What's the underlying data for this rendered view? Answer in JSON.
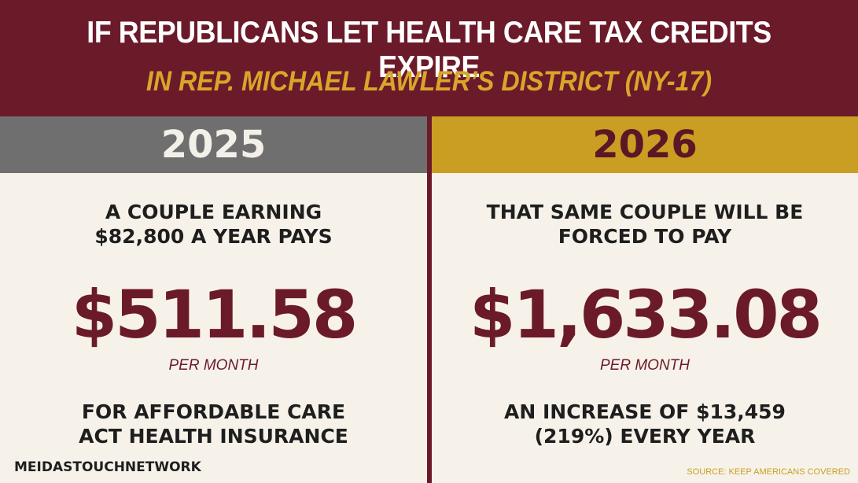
{
  "header": {
    "title": "IF REPUBLICANS LET HEALTH CARE TAX CREDITS EXPIRE",
    "subtitle": "IN REP. MICHAEL LAWLER’S DISTRICT (NY-17)"
  },
  "left": {
    "year": "2025",
    "lead_line1": "A COUPLE EARNING",
    "lead_line2": "$82,800 A YEAR PAYS",
    "amount": "$511.58",
    "per": "PER MONTH",
    "trail_line1": "FOR AFFORDABLE CARE",
    "trail_line2": "ACT HEALTH INSURANCE"
  },
  "right": {
    "year": "2026",
    "lead_line1": "THAT SAME COUPLE WILL BE",
    "lead_line2": "FORCED TO PAY",
    "amount": "$1,633.08",
    "per": "PER MONTH",
    "trail_line1": "AN INCREASE OF $13,459",
    "trail_line2": "(219%) EVERY YEAR"
  },
  "footer": {
    "brand": "MEIDASTOUCHNETWORK",
    "source": "SOURCE: KEEP AMERICANS COVERED"
  },
  "colors": {
    "maroon": "#6b1a2a",
    "gold": "#c99e22",
    "gray": "#6f6f6f",
    "background": "#f6f2ea"
  }
}
